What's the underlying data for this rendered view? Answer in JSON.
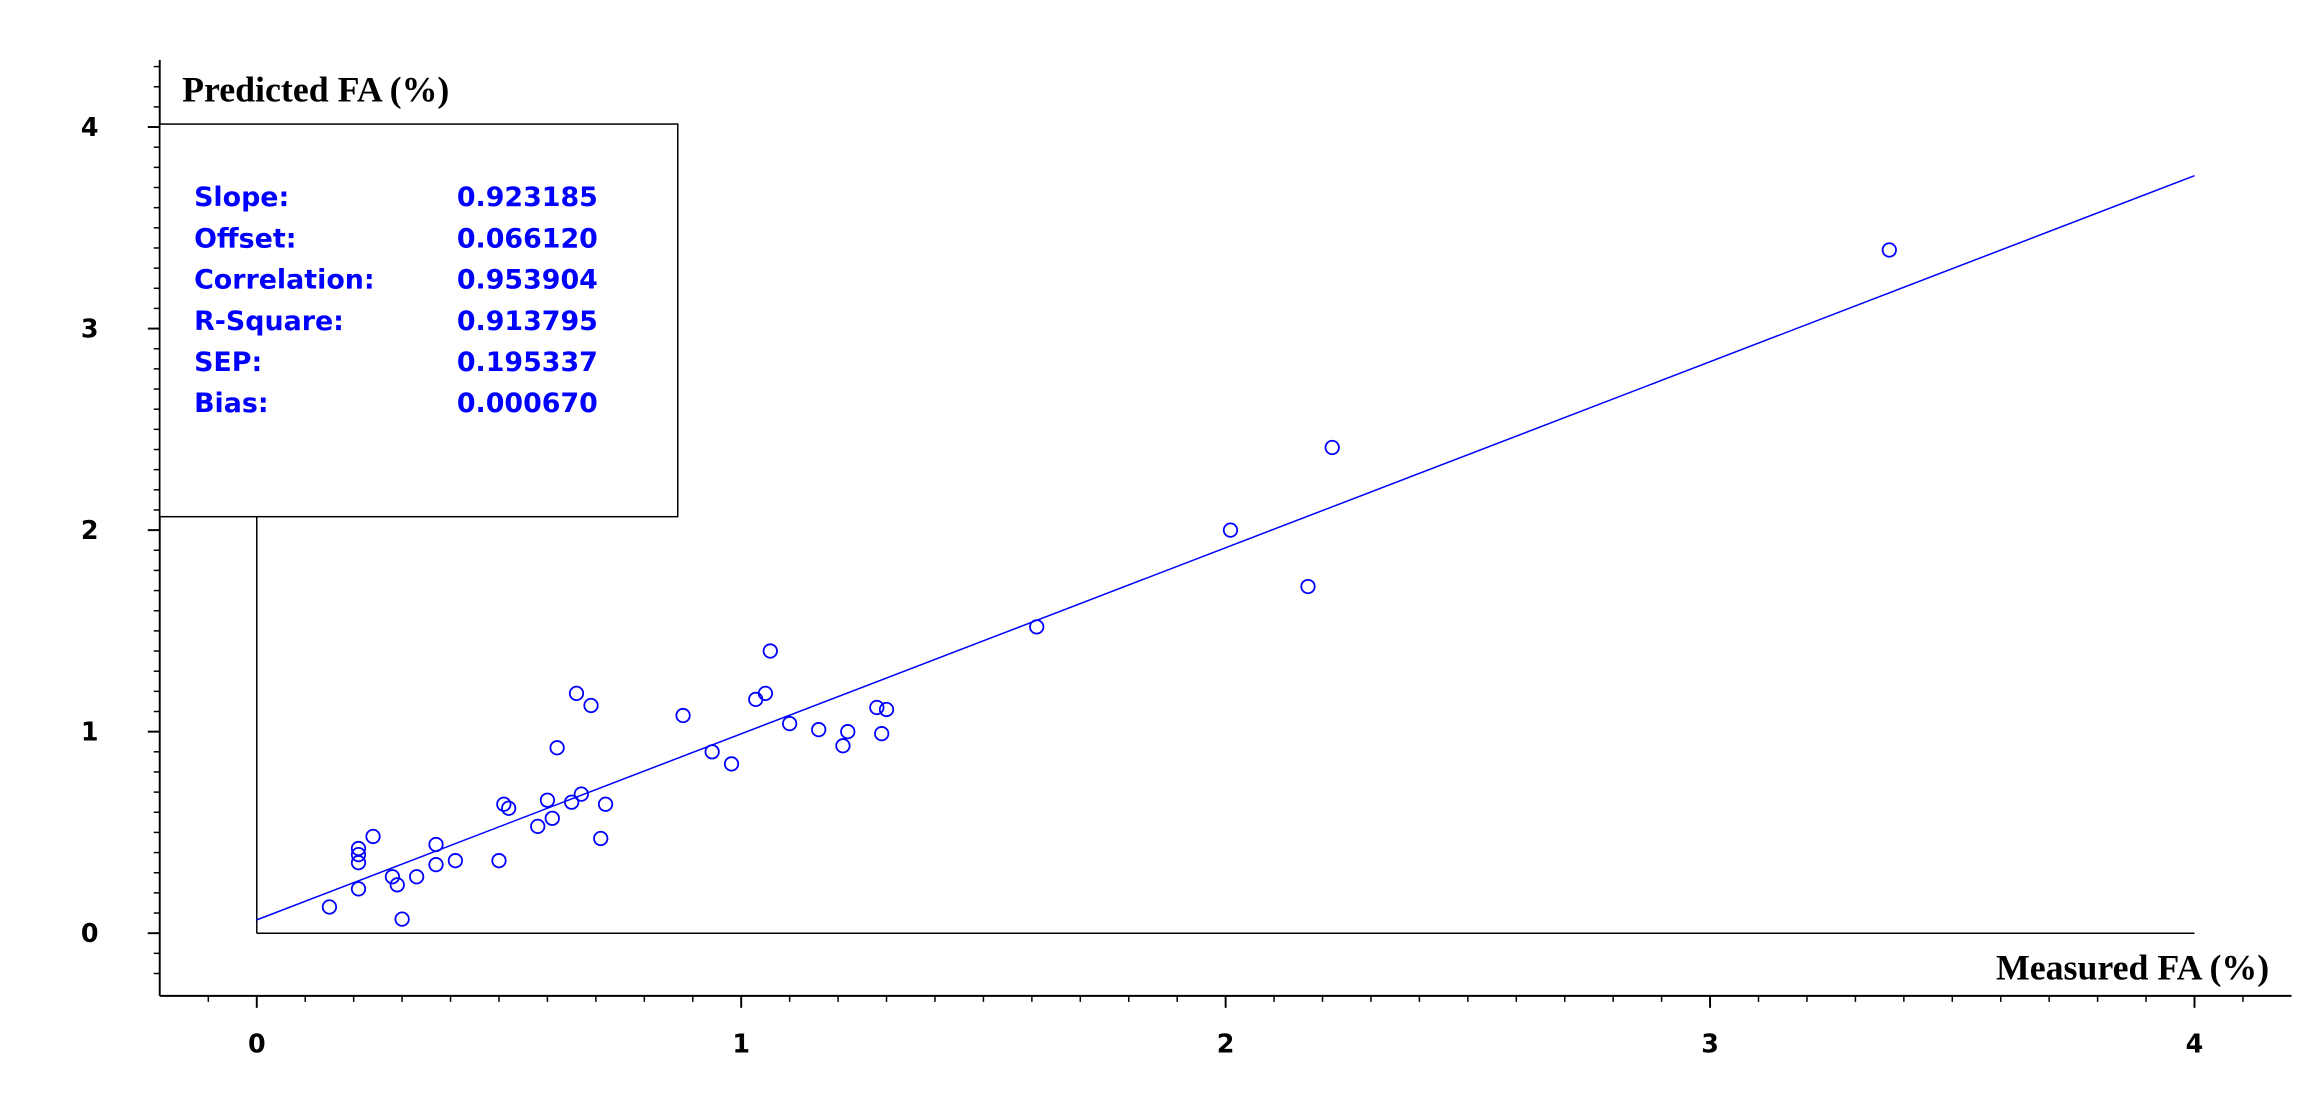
{
  "chart_data": {
    "type": "scatter",
    "y_label": "Predicted FA (%)",
    "x_label": "Measured FA (%)",
    "color": "#0000ff",
    "xlim": [
      0,
      4
    ],
    "ylim": [
      0,
      4
    ],
    "xticks": [
      0,
      1,
      2,
      3,
      4
    ],
    "yticks": [
      0,
      1,
      2,
      3,
      4
    ],
    "x": [
      0.15,
      0.21,
      0.21,
      0.21,
      0.21,
      0.24,
      0.28,
      0.29,
      0.3,
      0.33,
      0.37,
      0.37,
      0.41,
      0.5,
      0.51,
      0.52,
      0.58,
      0.6,
      0.61,
      0.62,
      0.65,
      0.66,
      0.67,
      0.69,
      0.71,
      0.72,
      0.88,
      0.94,
      0.98,
      1.03,
      1.05,
      1.06,
      1.1,
      1.16,
      1.21,
      1.22,
      1.28,
      1.29,
      1.3,
      1.61,
      2.01,
      2.17,
      2.22,
      3.37
    ],
    "values": [
      0.13,
      0.22,
      0.42,
      0.39,
      0.35,
      0.48,
      0.28,
      0.24,
      0.07,
      0.28,
      0.44,
      0.34,
      0.36,
      0.36,
      0.64,
      0.62,
      0.53,
      0.66,
      0.57,
      0.92,
      0.65,
      1.19,
      0.69,
      1.13,
      0.47,
      0.64,
      1.08,
      0.9,
      0.84,
      1.16,
      1.19,
      1.4,
      1.04,
      1.01,
      0.93,
      1.0,
      1.12,
      0.99,
      1.11,
      1.52,
      2.0,
      1.72,
      2.41,
      3.39
    ],
    "stats": {
      "names": [
        "Slope:",
        "Offset:",
        "Correlation:",
        "R-Square:",
        "SEP:",
        "Bias:"
      ],
      "values": [
        0.923185,
        0.06612,
        0.953904,
        0.913795,
        0.195337,
        0.00067
      ],
      "value_labels": [
        "0.923185",
        "0.066120",
        "0.953904",
        "0.913795",
        "0.195337",
        "0.000670"
      ]
    }
  }
}
